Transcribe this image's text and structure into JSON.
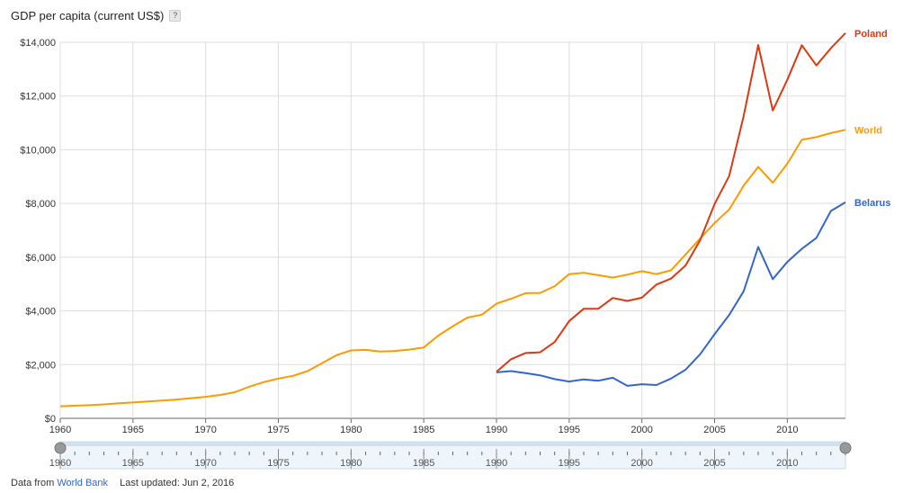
{
  "header": {
    "title": "GDP per capita (current US$)",
    "help_label": "?"
  },
  "footer": {
    "source_prefix": "Data from",
    "source_link": "World Bank",
    "last_updated": "Last updated: Jun 2, 2016"
  },
  "colors": {
    "poland": "#dc3912",
    "world": "#ff9900",
    "belarus": "#3366cc",
    "grid": "#dddddd",
    "axis": "#666666"
  },
  "chart_data": {
    "type": "line",
    "title": "GDP per capita (current US$)",
    "xlabel": "",
    "ylabel": "",
    "xlim": [
      1960,
      2014
    ],
    "ylim": [
      0,
      14000
    ],
    "x_ticks": [
      1960,
      1965,
      1970,
      1975,
      1980,
      1985,
      1990,
      1995,
      2000,
      2005,
      2010
    ],
    "y_ticks": [
      0,
      2000,
      4000,
      6000,
      8000,
      10000,
      12000,
      14000
    ],
    "y_tick_labels": [
      "$0",
      "$2,000",
      "$4,000",
      "$6,000",
      "$8,000",
      "$10,000",
      "$12,000",
      "$14,000"
    ],
    "grid": true,
    "legend_placement": "right, at line ends",
    "series": [
      {
        "name": "World",
        "x": [
          1960,
          1961,
          1962,
          1963,
          1964,
          1965,
          1966,
          1967,
          1968,
          1969,
          1970,
          1971,
          1972,
          1973,
          1974,
          1975,
          1976,
          1977,
          1978,
          1979,
          1980,
          1981,
          1982,
          1983,
          1984,
          1985,
          1986,
          1987,
          1988,
          1989,
          1990,
          1991,
          1992,
          1993,
          1994,
          1995,
          1996,
          1997,
          1998,
          1999,
          2000,
          2001,
          2002,
          2003,
          2004,
          2005,
          2006,
          2007,
          2008,
          2009,
          2010,
          2011,
          2012,
          2013,
          2014
        ],
        "values": [
          450,
          470,
          490,
          520,
          560,
          590,
          630,
          660,
          700,
          750,
          800,
          870,
          970,
          1180,
          1350,
          1480,
          1580,
          1760,
          2050,
          2350,
          2530,
          2550,
          2490,
          2510,
          2560,
          2640,
          3080,
          3430,
          3750,
          3860,
          4270,
          4450,
          4660,
          4670,
          4920,
          5370,
          5420,
          5330,
          5240,
          5350,
          5480,
          5370,
          5510,
          6100,
          6690,
          7270,
          7770,
          8660,
          9360,
          8770,
          9480,
          10370,
          10470,
          10620,
          10740
        ]
      },
      {
        "name": "Poland",
        "x": [
          1990,
          1991,
          1992,
          1993,
          1994,
          1995,
          1996,
          1997,
          1998,
          1999,
          2000,
          2001,
          2002,
          2003,
          2004,
          2005,
          2006,
          2007,
          2008,
          2009,
          2010,
          2011,
          2012,
          2013,
          2014
        ],
        "values": [
          1730,
          2200,
          2430,
          2460,
          2840,
          3620,
          4080,
          4080,
          4480,
          4370,
          4490,
          4980,
          5200,
          5690,
          6620,
          7980,
          9020,
          11250,
          13900,
          11460,
          12600,
          13890,
          13140,
          13780,
          14340
        ]
      },
      {
        "name": "Belarus",
        "x": [
          1990,
          1991,
          1992,
          1993,
          1994,
          1995,
          1996,
          1997,
          1998,
          1999,
          2000,
          2001,
          2002,
          2003,
          2004,
          2005,
          2006,
          2007,
          2008,
          2009,
          2010,
          2011,
          2012,
          2013,
          2014
        ],
        "values": [
          1710,
          1760,
          1680,
          1600,
          1460,
          1370,
          1450,
          1400,
          1510,
          1210,
          1270,
          1240,
          1480,
          1810,
          2380,
          3130,
          3850,
          4730,
          6380,
          5180,
          5820,
          6310,
          6720,
          7720,
          8040
        ]
      }
    ],
    "range_selector": {
      "x_ticks": [
        1960,
        1965,
        1970,
        1975,
        1980,
        1985,
        1990,
        1995,
        2000,
        2005,
        2010
      ],
      "range": [
        1960,
        2014
      ]
    }
  }
}
